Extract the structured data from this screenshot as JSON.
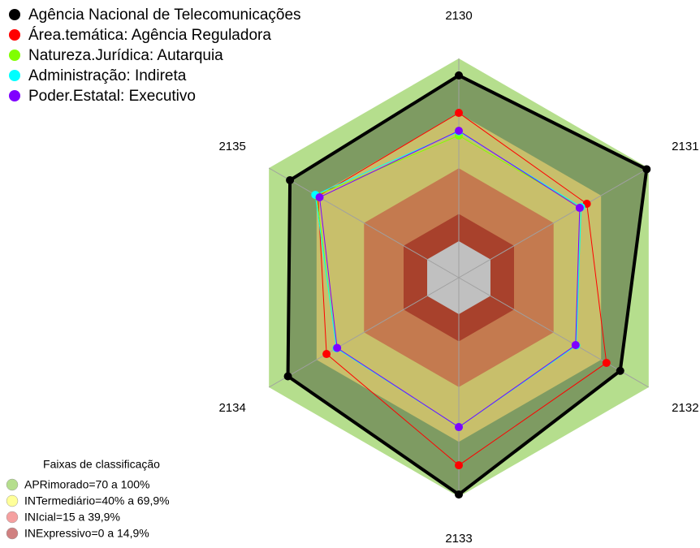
{
  "chart_data": {
    "type": "radar",
    "categories": [
      "2130",
      "2131",
      "2132",
      "2133",
      "2134",
      "2135"
    ],
    "rlim": [
      -20,
      100
    ],
    "series": [
      {
        "name": "Agência Nacional de Telecomunicações",
        "color": "#000000",
        "values": [
          90.7,
          98.7,
          82,
          98.7,
          88,
          86.7
        ]
      },
      {
        "name": "Área.temática: Agência Reguladora",
        "color": "#ff0000",
        "values": [
          70.2,
          60.9,
          73.3,
          82.7,
          63.6,
          69
        ]
      },
      {
        "name": "Natureza.Jurídica: Autarquia",
        "color": "#80ff00",
        "values": [
          57.8,
          57.3,
          54.2,
          61.8,
          57.3,
          70
        ]
      },
      {
        "name": "Administração: Indireta",
        "color": "#00ffff",
        "values": [
          60,
          57.3,
          54.2,
          61.8,
          57.3,
          70.7
        ]
      },
      {
        "name": "Poder.Estatal: Executivo",
        "color": "#8000ff",
        "values": [
          60.4,
          56.4,
          53.8,
          61.8,
          56.9,
          68
        ]
      }
    ],
    "bands_title": "Faixas de classificação",
    "bands": [
      {
        "label": "APRimorado=70 a 100%",
        "min": 70,
        "max": 100,
        "color": "#b5de8d",
        "fill": "#b5de8d"
      },
      {
        "label": "INTermediário=40% a 69,9%",
        "min": 40,
        "max": 69.9,
        "color": "#ffff99",
        "fill": "#c8bf6b"
      },
      {
        "label": "INIcial=15 a 39,9%",
        "min": 15,
        "max": 39.9,
        "color": "#f5a0a0",
        "fill": "#c47a4f"
      },
      {
        "label": "INExpressivo=0 a 14,9%",
        "min": 0,
        "max": 14.9,
        "color": "#d08080",
        "fill": "#a8412c"
      }
    ],
    "center_color": "#c0c0c0",
    "grid": true
  }
}
